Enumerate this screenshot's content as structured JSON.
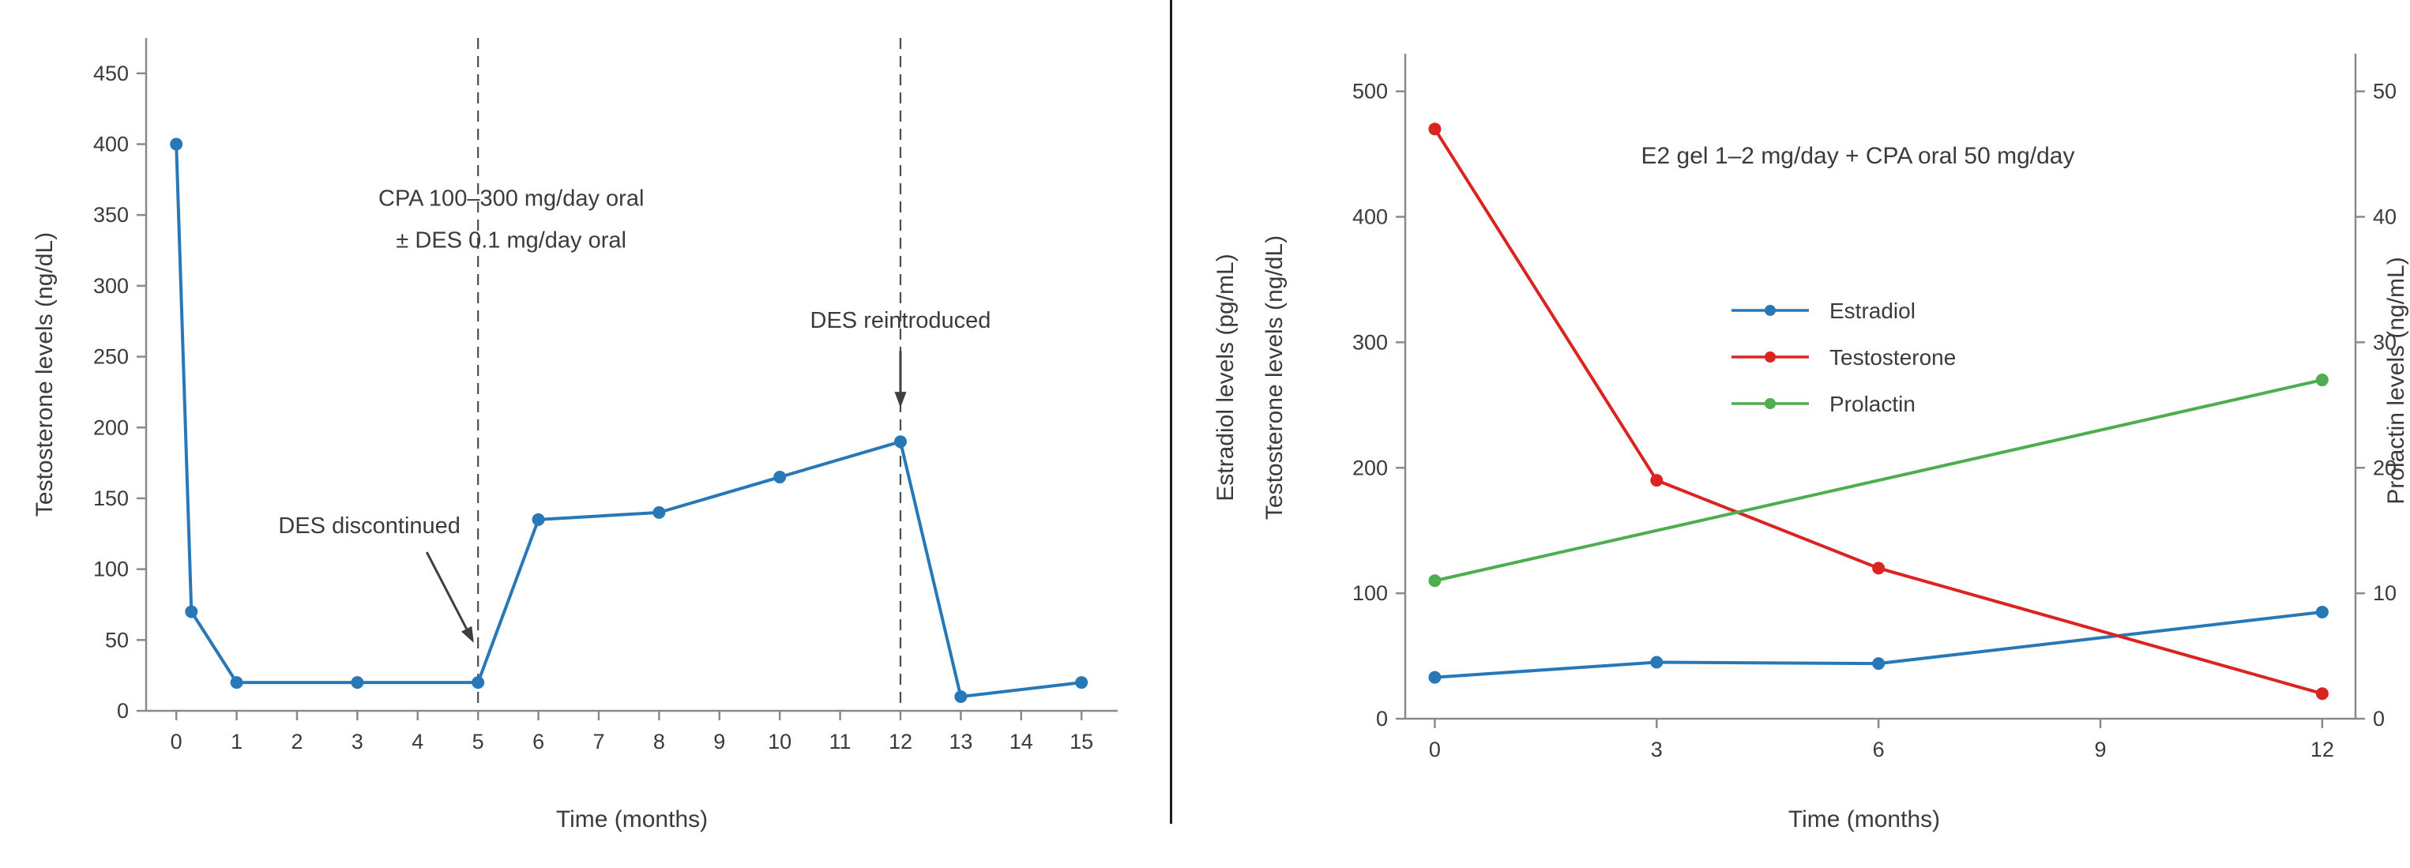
{
  "figure": {
    "background": "#ffffff",
    "divider_color": "#1c1c1c"
  },
  "styles": {
    "axis_color": "#8a8a8a",
    "text_color": "#3b3b3b",
    "dashed_line_color": "#4d4d4d",
    "arrow_color": "#3f3f3f"
  },
  "chart_data": [
    {
      "type": "line",
      "title": "",
      "xlabel": "Time (months)",
      "ylabel": "Testosterone levels (ng/dL)",
      "xlim": [
        -0.5,
        15.6
      ],
      "ylim": [
        0,
        475
      ],
      "xticks": [
        0,
        1,
        2,
        3,
        4,
        5,
        6,
        7,
        8,
        9,
        10,
        11,
        12,
        13,
        14,
        15
      ],
      "yticks": [
        0,
        50,
        100,
        150,
        200,
        250,
        300,
        350,
        400,
        450
      ],
      "grid": false,
      "legend_position": "none",
      "series": [
        {
          "name": "Testosterone",
          "color": "#2878b8",
          "x": [
            0,
            0.25,
            1,
            3,
            5,
            6,
            8,
            10,
            12,
            13,
            15
          ],
          "values": [
            400,
            70,
            20,
            20,
            20,
            135,
            140,
            165,
            190,
            10,
            20
          ]
        }
      ],
      "vlines": [
        {
          "x": 5,
          "style": "dashed"
        },
        {
          "x": 12,
          "style": "dashed"
        }
      ],
      "annotations": [
        {
          "lines": [
            "CPA 100–300 mg/day oral",
            "± DES 0.1 mg/day oral"
          ],
          "x": 5.55,
          "y": 362
        },
        {
          "text": "DES discontinued",
          "x": 3.2,
          "y": 131,
          "arrow": {
            "from": [
              4.15,
              112
            ],
            "to": [
              4.93,
              48
            ]
          }
        },
        {
          "text": "DES reintroduced",
          "x": 12,
          "y": 276,
          "arrow": {
            "from": [
              12,
              254
            ],
            "to": [
              12,
              214
            ]
          }
        }
      ]
    },
    {
      "type": "line",
      "title": "E2 gel 1–2 mg/day + CPA oral 50 mg/day",
      "xlabel": "Time (months)",
      "ylabel_left_outer": "Estradiol levels (pg/mL)",
      "ylabel_left_inner": "Testosterone levels (ng/dL)",
      "ylabel_right": "Prolactin levels (ng/mL)",
      "xlim": [
        -0.4,
        12.45
      ],
      "ylim": [
        0,
        530
      ],
      "ylim_right": [
        0,
        53
      ],
      "xticks": [
        0,
        3,
        6,
        9,
        12
      ],
      "yticks": [
        0,
        100,
        200,
        300,
        400,
        500
      ],
      "yticks_right": [
        0,
        10,
        20,
        30,
        40,
        50
      ],
      "grid": false,
      "legend_position": "upper-center-inside",
      "legend": [
        "Estradiol",
        "Testosterone",
        "Prolactin"
      ],
      "series": [
        {
          "name": "Estradiol",
          "axis": "left",
          "color": "#2878b8",
          "x": [
            0,
            3,
            6,
            12
          ],
          "values": [
            33,
            45,
            44,
            85
          ]
        },
        {
          "name": "Testosterone",
          "axis": "left",
          "color": "#da2420",
          "x": [
            0,
            3,
            6,
            12
          ],
          "values": [
            470,
            190,
            120,
            20
          ]
        },
        {
          "name": "Prolactin",
          "axis": "right",
          "color": "#4cae4f",
          "x": [
            0,
            12
          ],
          "values": [
            11,
            27
          ]
        }
      ]
    }
  ]
}
